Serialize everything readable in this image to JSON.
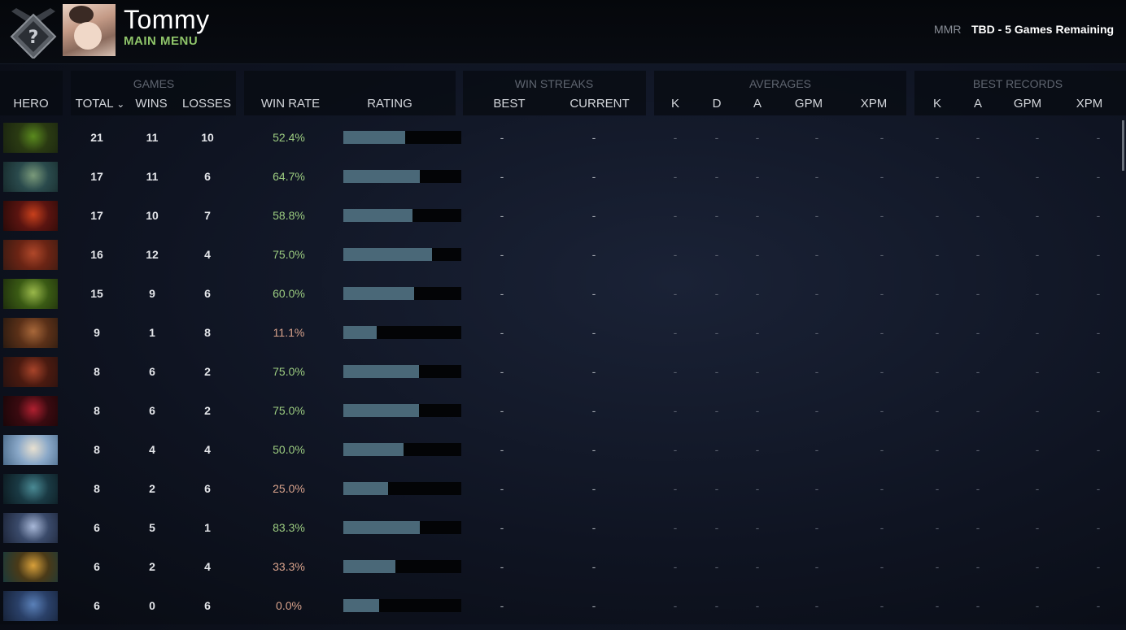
{
  "header": {
    "username": "Tommy",
    "subtitle": "MAIN MENU",
    "mmr_label": "MMR",
    "mmr_value": "TBD - 5 Games Remaining"
  },
  "table": {
    "groups": {
      "games": "GAMES",
      "win_streaks": "WIN STREAKS",
      "averages": "AVERAGES",
      "best_records": "BEST RECORDS"
    },
    "columns": {
      "hero": "HERO",
      "total": "TOTAL",
      "wins": "WINS",
      "losses": "LOSSES",
      "win_rate": "WIN RATE",
      "rating": "RATING",
      "best": "BEST",
      "current": "CURRENT",
      "avg_k": "K",
      "avg_d": "D",
      "avg_a": "A",
      "avg_gpm": "GPM",
      "avg_xpm": "XPM",
      "rec_k": "K",
      "rec_a": "A",
      "rec_gpm": "GPM",
      "rec_xpm": "XPM"
    },
    "sort_indicator": "⌄",
    "rows": [
      {
        "total": "21",
        "wins": "11",
        "losses": "10",
        "win_rate": "52.4%",
        "rating": 0.524,
        "best": "-",
        "current": "-",
        "avg_k": "-",
        "avg_d": "-",
        "avg_a": "-",
        "avg_gpm": "-",
        "avg_xpm": "-",
        "rec_k": "-",
        "rec_a": "-",
        "rec_gpm": "-",
        "rec_xpm": "-"
      },
      {
        "total": "17",
        "wins": "11",
        "losses": "6",
        "win_rate": "64.7%",
        "rating": 0.647,
        "best": "-",
        "current": "-",
        "avg_k": "-",
        "avg_d": "-",
        "avg_a": "-",
        "avg_gpm": "-",
        "avg_xpm": "-",
        "rec_k": "-",
        "rec_a": "-",
        "rec_gpm": "-",
        "rec_xpm": "-"
      },
      {
        "total": "17",
        "wins": "10",
        "losses": "7",
        "win_rate": "58.8%",
        "rating": 0.588,
        "best": "-",
        "current": "-",
        "avg_k": "-",
        "avg_d": "-",
        "avg_a": "-",
        "avg_gpm": "-",
        "avg_xpm": "-",
        "rec_k": "-",
        "rec_a": "-",
        "rec_gpm": "-",
        "rec_xpm": "-"
      },
      {
        "total": "16",
        "wins": "12",
        "losses": "4",
        "win_rate": "75.0%",
        "rating": 0.75,
        "best": "-",
        "current": "-",
        "avg_k": "-",
        "avg_d": "-",
        "avg_a": "-",
        "avg_gpm": "-",
        "avg_xpm": "-",
        "rec_k": "-",
        "rec_a": "-",
        "rec_gpm": "-",
        "rec_xpm": "-"
      },
      {
        "total": "15",
        "wins": "9",
        "losses": "6",
        "win_rate": "60.0%",
        "rating": 0.6,
        "best": "-",
        "current": "-",
        "avg_k": "-",
        "avg_d": "-",
        "avg_a": "-",
        "avg_gpm": "-",
        "avg_xpm": "-",
        "rec_k": "-",
        "rec_a": "-",
        "rec_gpm": "-",
        "rec_xpm": "-"
      },
      {
        "total": "9",
        "wins": "1",
        "losses": "8",
        "win_rate": "11.1%",
        "rating": 0.28,
        "best": "-",
        "current": "-",
        "avg_k": "-",
        "avg_d": "-",
        "avg_a": "-",
        "avg_gpm": "-",
        "avg_xpm": "-",
        "rec_k": "-",
        "rec_a": "-",
        "rec_gpm": "-",
        "rec_xpm": "-"
      },
      {
        "total": "8",
        "wins": "6",
        "losses": "2",
        "win_rate": "75.0%",
        "rating": 0.64,
        "best": "-",
        "current": "-",
        "avg_k": "-",
        "avg_d": "-",
        "avg_a": "-",
        "avg_gpm": "-",
        "avg_xpm": "-",
        "rec_k": "-",
        "rec_a": "-",
        "rec_gpm": "-",
        "rec_xpm": "-"
      },
      {
        "total": "8",
        "wins": "6",
        "losses": "2",
        "win_rate": "75.0%",
        "rating": 0.64,
        "best": "-",
        "current": "-",
        "avg_k": "-",
        "avg_d": "-",
        "avg_a": "-",
        "avg_gpm": "-",
        "avg_xpm": "-",
        "rec_k": "-",
        "rec_a": "-",
        "rec_gpm": "-",
        "rec_xpm": "-"
      },
      {
        "total": "8",
        "wins": "4",
        "losses": "4",
        "win_rate": "50.0%",
        "rating": 0.51,
        "best": "-",
        "current": "-",
        "avg_k": "-",
        "avg_d": "-",
        "avg_a": "-",
        "avg_gpm": "-",
        "avg_xpm": "-",
        "rec_k": "-",
        "rec_a": "-",
        "rec_gpm": "-",
        "rec_xpm": "-"
      },
      {
        "total": "8",
        "wins": "2",
        "losses": "6",
        "win_rate": "25.0%",
        "rating": 0.38,
        "best": "-",
        "current": "-",
        "avg_k": "-",
        "avg_d": "-",
        "avg_a": "-",
        "avg_gpm": "-",
        "avg_xpm": "-",
        "rec_k": "-",
        "rec_a": "-",
        "rec_gpm": "-",
        "rec_xpm": "-"
      },
      {
        "total": "6",
        "wins": "5",
        "losses": "1",
        "win_rate": "83.3%",
        "rating": 0.645,
        "best": "-",
        "current": "-",
        "avg_k": "-",
        "avg_d": "-",
        "avg_a": "-",
        "avg_gpm": "-",
        "avg_xpm": "-",
        "rec_k": "-",
        "rec_a": "-",
        "rec_gpm": "-",
        "rec_xpm": "-"
      },
      {
        "total": "6",
        "wins": "2",
        "losses": "4",
        "win_rate": "33.3%",
        "rating": 0.44,
        "best": "-",
        "current": "-",
        "avg_k": "-",
        "avg_d": "-",
        "avg_a": "-",
        "avg_gpm": "-",
        "avg_xpm": "-",
        "rec_k": "-",
        "rec_a": "-",
        "rec_gpm": "-",
        "rec_xpm": "-"
      },
      {
        "total": "6",
        "wins": "0",
        "losses": "6",
        "win_rate": "0.0%",
        "rating": 0.3,
        "best": "-",
        "current": "-",
        "avg_k": "-",
        "avg_d": "-",
        "avg_a": "-",
        "avg_gpm": "-",
        "avg_xpm": "-",
        "rec_k": "-",
        "rec_a": "-",
        "rec_gpm": "-",
        "rec_xpm": "-"
      }
    ]
  },
  "hero_portraits": [
    {
      "icon": "rubick-portrait-icon",
      "colors": [
        "#2a3a12",
        "#5a8a1e",
        "#1a2410"
      ]
    },
    {
      "icon": "skywrath-mage-portrait-icon",
      "colors": [
        "#2a4a4c",
        "#7a9a7a",
        "#162a2c"
      ]
    },
    {
      "icon": "shadow-fiend-portrait-icon",
      "colors": [
        "#5a1410",
        "#c8401c",
        "#2a0a08"
      ]
    },
    {
      "icon": "axe-portrait-icon",
      "colors": [
        "#6a2414",
        "#b0482a",
        "#3a1a12"
      ]
    },
    {
      "icon": "venomancer-portrait-icon",
      "colors": [
        "#3a5a14",
        "#9ab84a",
        "#1e2e0c"
      ]
    },
    {
      "icon": "bristleback-portrait-icon",
      "colors": [
        "#5a3018",
        "#a8683a",
        "#2a1a10"
      ]
    },
    {
      "icon": "bloodseeker-portrait-icon",
      "colors": [
        "#4a1a10",
        "#a8442a",
        "#281210"
      ]
    },
    {
      "icon": "queen-of-pain-portrait-icon",
      "colors": [
        "#3a0a10",
        "#b02030",
        "#1a0608"
      ]
    },
    {
      "icon": "crystal-maiden-portrait-icon",
      "colors": [
        "#8aa8c8",
        "#e8e0d0",
        "#4a6a8a"
      ]
    },
    {
      "icon": "phantom-assassin-portrait-icon",
      "colors": [
        "#1a3a44",
        "#4a8a94",
        "#0c1a20"
      ]
    },
    {
      "icon": "drow-ranger-portrait-icon",
      "colors": [
        "#3a4a6a",
        "#a8b8d8",
        "#1c2438"
      ]
    },
    {
      "icon": "clinkz-portrait-icon",
      "colors": [
        "#4a3a18",
        "#d8a03a",
        "#1a3a3a"
      ]
    },
    {
      "icon": "spirit-breaker-portrait-icon",
      "colors": [
        "#2a4068",
        "#5a80b8",
        "#162238"
      ]
    }
  ],
  "colors": {
    "win_rate_good": "#9ccc80",
    "win_rate_bad": "#d9a38c",
    "rating_bar": "#4a6878",
    "main_menu": "#8fc56a"
  }
}
